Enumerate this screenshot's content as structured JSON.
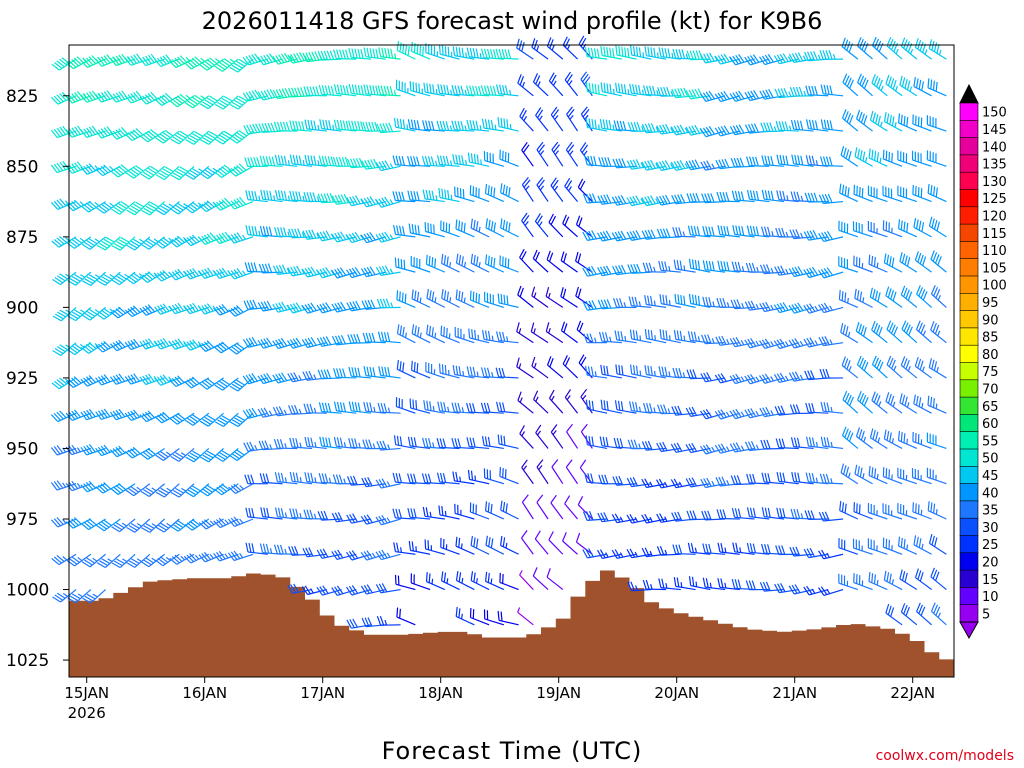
{
  "chart_data": {
    "type": "wind_barb_profile",
    "title": "2026011418 GFS forecast wind profile (kt) for K9B6",
    "xlabel": "Forecast Time (UTC)",
    "credit": "coolwx.com/models",
    "x_ticks": [
      {
        "label": "15JAN",
        "sub": "2026",
        "day": 0
      },
      {
        "label": "16JAN",
        "day": 1
      },
      {
        "label": "17JAN",
        "day": 2
      },
      {
        "label": "18JAN",
        "day": 3
      },
      {
        "label": "19JAN",
        "day": 4
      },
      {
        "label": "20JAN",
        "day": 5
      },
      {
        "label": "21JAN",
        "day": 6
      },
      {
        "label": "22JAN",
        "day": 7
      }
    ],
    "x_range_days": [
      -0.15,
      7.35
    ],
    "y_ticks": [
      825,
      850,
      875,
      900,
      925,
      950,
      975,
      1000,
      1025
    ],
    "y_range_hpa": [
      807,
      1031
    ],
    "pressure_levels": [
      812,
      825,
      837.5,
      850,
      862.5,
      875,
      887.5,
      900,
      912.5,
      925,
      937.5,
      950,
      962.5,
      975,
      987.5,
      1000,
      1012.5
    ],
    "colorbar": {
      "labels": [
        "150",
        "145",
        "140",
        "135",
        "130",
        "125",
        "120",
        "115",
        "110",
        "105",
        "100",
        "95",
        "90",
        "85",
        "80",
        "75",
        "70",
        "65",
        "60",
        "55",
        "50",
        "45",
        "40",
        "35",
        "30",
        "25",
        "20",
        "15",
        "10",
        "5"
      ],
      "colors": [
        "#ff00ff",
        "#f000c8",
        "#e6009b",
        "#f00078",
        "#ff0050",
        "#ff0000",
        "#ff1e00",
        "#f54600",
        "#ff6400",
        "#ff7d00",
        "#ff9600",
        "#ffaf00",
        "#ffc800",
        "#ffe600",
        "#ffff00",
        "#c8ff00",
        "#78f000",
        "#32e632",
        "#00e678",
        "#00f0b4",
        "#00e6d2",
        "#00c8f0",
        "#0096ff",
        "#1e78ff",
        "#0a50ff",
        "#0032ff",
        "#0000f0",
        "#2800d2",
        "#6400ff",
        "#9600f0"
      ],
      "values": [
        150,
        145,
        140,
        135,
        130,
        125,
        120,
        115,
        110,
        105,
        100,
        95,
        90,
        85,
        80,
        75,
        70,
        65,
        60,
        55,
        50,
        45,
        40,
        35,
        30,
        25,
        20,
        15,
        10,
        5
      ]
    },
    "terrain_color": "#a0522d",
    "surface_pressure": [
      {
        "day": -0.15,
        "hpa": 1004
      },
      {
        "day": 0.1,
        "hpa": 1004
      },
      {
        "day": 0.3,
        "hpa": 1001
      },
      {
        "day": 0.55,
        "hpa": 997
      },
      {
        "day": 0.9,
        "hpa": 996
      },
      {
        "day": 1.2,
        "hpa": 996
      },
      {
        "day": 1.45,
        "hpa": 994
      },
      {
        "day": 1.7,
        "hpa": 996
      },
      {
        "day": 1.9,
        "hpa": 1003
      },
      {
        "day": 2.1,
        "hpa": 1012
      },
      {
        "day": 2.4,
        "hpa": 1016
      },
      {
        "day": 2.7,
        "hpa": 1016
      },
      {
        "day": 3.0,
        "hpa": 1015
      },
      {
        "day": 3.2,
        "hpa": 1015
      },
      {
        "day": 3.4,
        "hpa": 1017
      },
      {
        "day": 3.7,
        "hpa": 1017
      },
      {
        "day": 3.85,
        "hpa": 1015
      },
      {
        "day": 4.05,
        "hpa": 1010
      },
      {
        "day": 4.2,
        "hpa": 1000
      },
      {
        "day": 4.4,
        "hpa": 993
      },
      {
        "day": 4.6,
        "hpa": 997
      },
      {
        "day": 4.8,
        "hpa": 1005
      },
      {
        "day": 5.0,
        "hpa": 1008
      },
      {
        "day": 5.3,
        "hpa": 1011
      },
      {
        "day": 5.6,
        "hpa": 1014
      },
      {
        "day": 5.9,
        "hpa": 1015
      },
      {
        "day": 6.2,
        "hpa": 1014
      },
      {
        "day": 6.5,
        "hpa": 1012
      },
      {
        "day": 6.8,
        "hpa": 1014
      },
      {
        "day": 7.0,
        "hpa": 1017
      },
      {
        "day": 7.15,
        "hpa": 1022
      },
      {
        "day": 7.35,
        "hpa": 1026
      }
    ],
    "wind_segments": [
      {
        "from_day": -0.15,
        "to_day": 1.45,
        "dir_deg": 240,
        "low_kt": 30,
        "high_kt": 50
      },
      {
        "from_day": 1.45,
        "to_day": 2.7,
        "dir_deg": 265,
        "low_kt": 25,
        "high_kt": 50
      },
      {
        "from_day": 2.7,
        "to_day": 3.7,
        "dir_deg": 285,
        "low_kt": 20,
        "high_kt": 45
      },
      {
        "from_day": 3.7,
        "to_day": 4.3,
        "dir_deg": 315,
        "low_kt": 5,
        "high_kt": 25
      },
      {
        "from_day": 4.3,
        "to_day": 5.3,
        "dir_deg": 270,
        "low_kt": 20,
        "high_kt": 45
      },
      {
        "from_day": 5.3,
        "to_day": 6.5,
        "dir_deg": 265,
        "low_kt": 25,
        "high_kt": 40
      },
      {
        "from_day": 6.5,
        "to_day": 7.35,
        "dir_deg": 300,
        "low_kt": 30,
        "high_kt": 40
      }
    ]
  }
}
